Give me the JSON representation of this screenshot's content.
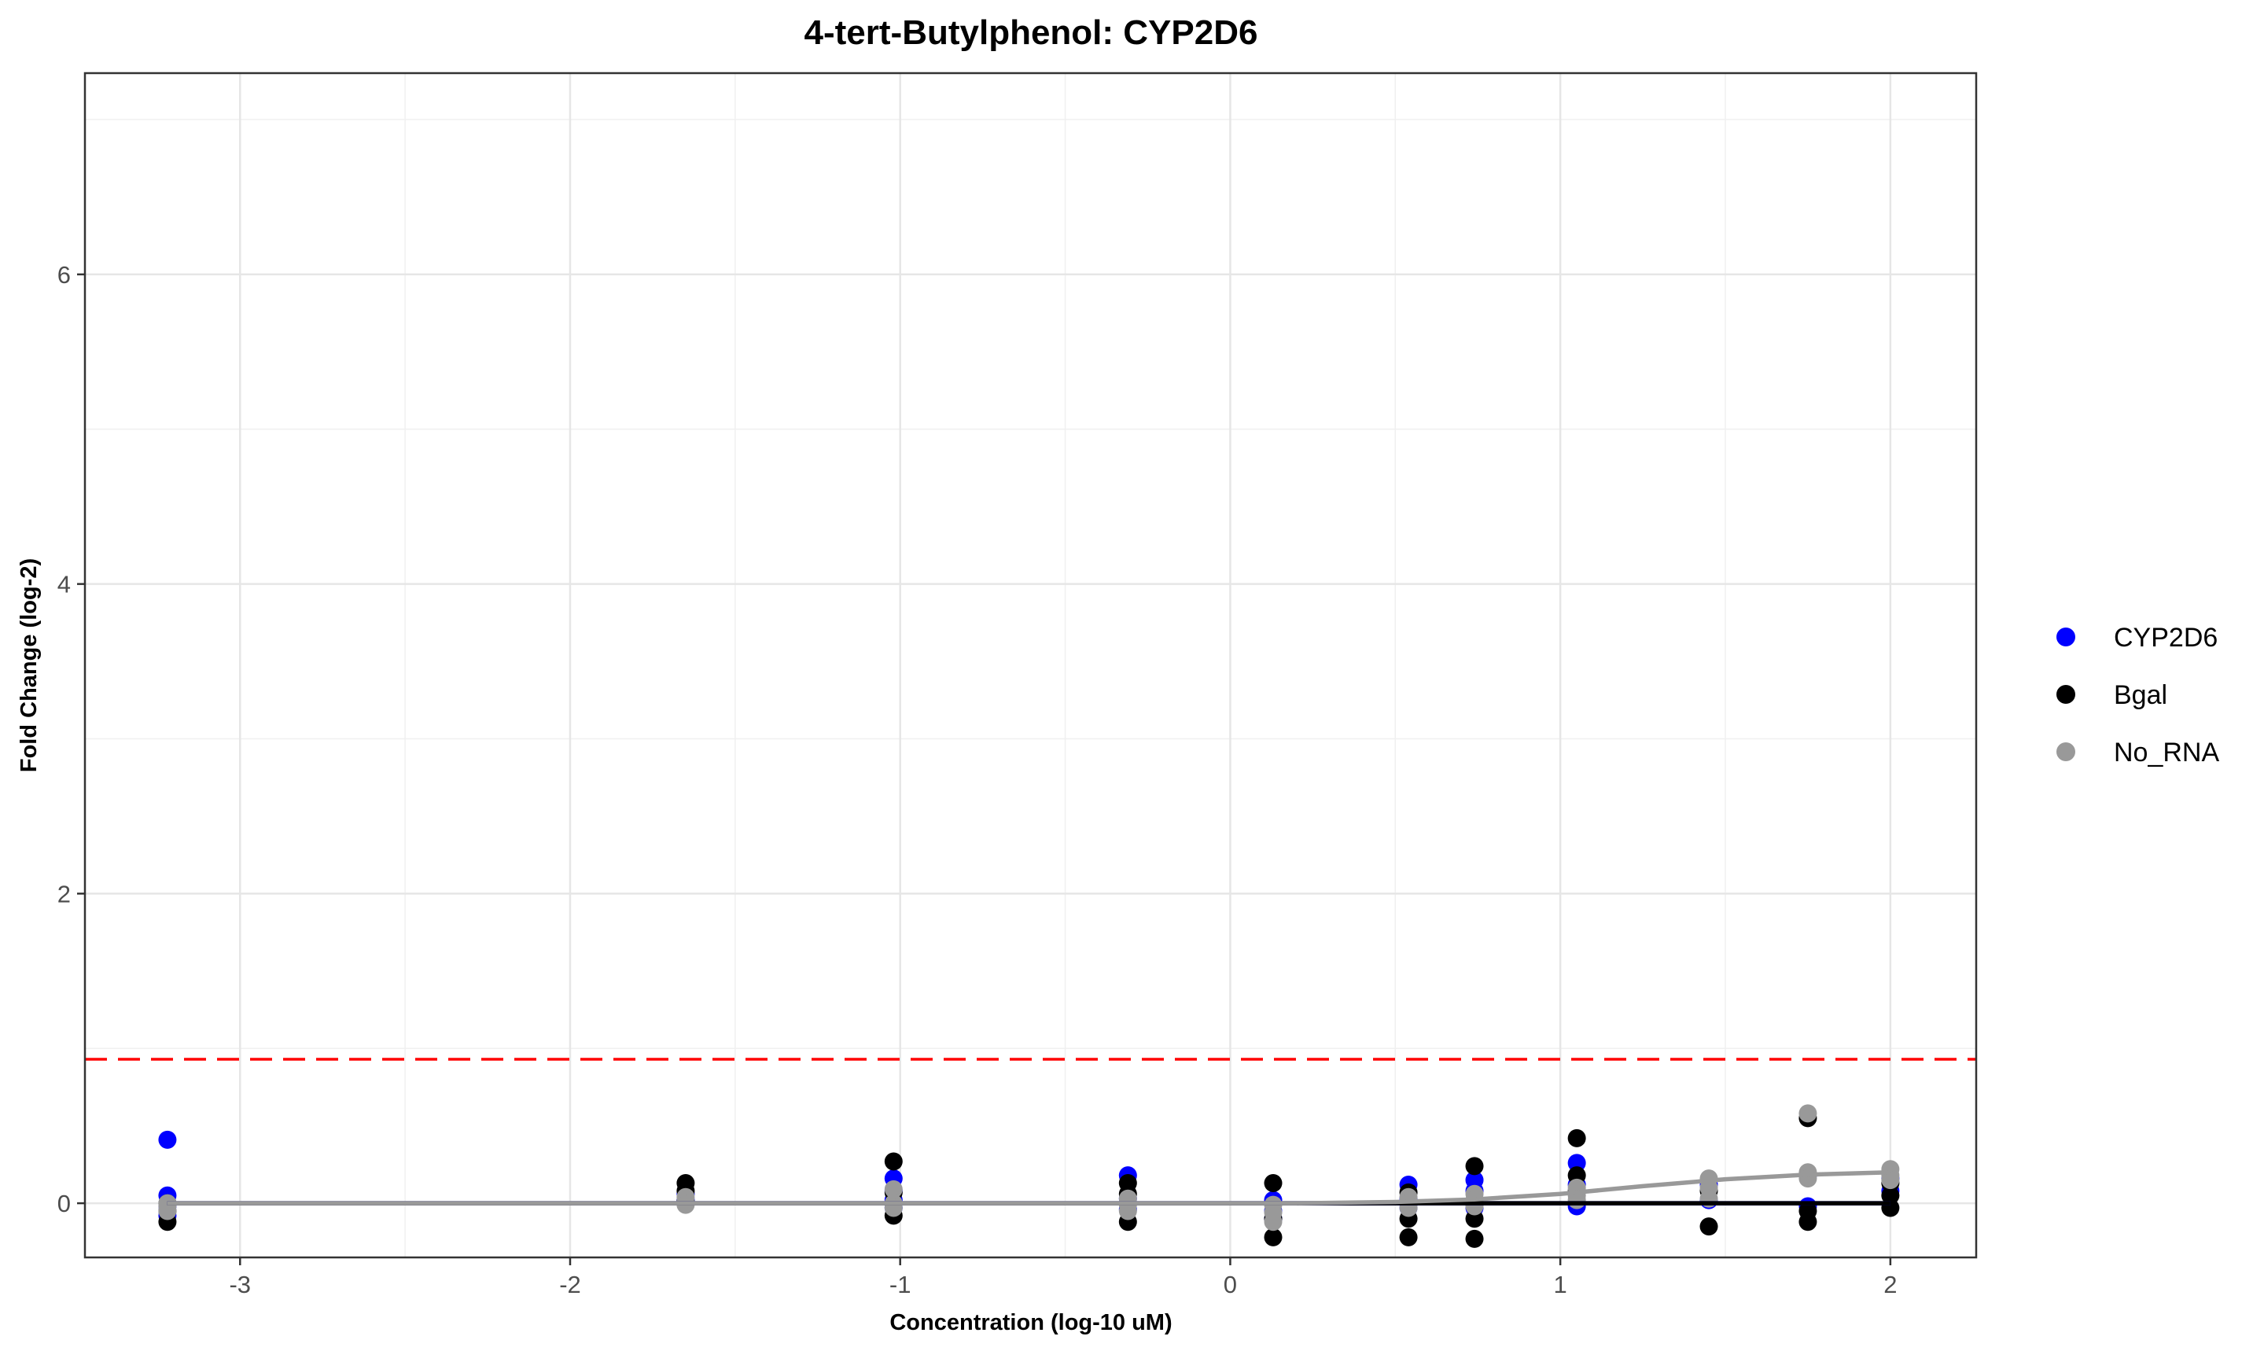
{
  "chart_data": {
    "type": "scatter",
    "title": "4-tert-Butylphenol: CYP2D6",
    "xlabel": "Concentration (log-10 uM)",
    "ylabel": "Fold Change (log-2)",
    "xlim": [
      -3.47,
      2.26
    ],
    "ylim": [
      -0.35,
      7.3
    ],
    "x_ticks": [
      -3,
      -2,
      -1,
      0,
      1,
      2
    ],
    "x_tick_labels": [
      "-3",
      "-2",
      "-1",
      "0",
      "1",
      "2"
    ],
    "y_ticks": [
      0,
      2,
      4,
      6
    ],
    "y_tick_labels": [
      "0",
      "2",
      "4",
      "6"
    ],
    "grid": true,
    "legend_position": "right",
    "threshold": {
      "y": 0.93,
      "color": "#ff0000",
      "style": "dashed"
    },
    "series": [
      {
        "name": "CYP2D6",
        "color": "#0000ff",
        "points": [
          [
            -3.22,
            0.41
          ],
          [
            -3.22,
            0.05
          ],
          [
            -3.22,
            -0.02
          ],
          [
            -3.22,
            -0.08
          ],
          [
            -1.65,
            0.02
          ],
          [
            -1.65,
            0.06
          ],
          [
            -1.02,
            0.16
          ],
          [
            -1.02,
            0.08
          ],
          [
            -1.02,
            0.02
          ],
          [
            -1.02,
            -0.03
          ],
          [
            -0.31,
            0.18
          ],
          [
            -0.31,
            0.03
          ],
          [
            -0.31,
            -0.04
          ],
          [
            0.13,
            0.02
          ],
          [
            0.13,
            -0.05
          ],
          [
            0.13,
            -0.1
          ],
          [
            0.54,
            0.12
          ],
          [
            0.54,
            0.03
          ],
          [
            0.54,
            -0.03
          ],
          [
            0.74,
            0.15
          ],
          [
            0.74,
            0.08
          ],
          [
            0.74,
            -0.03
          ],
          [
            1.05,
            0.26
          ],
          [
            1.05,
            0.12
          ],
          [
            1.05,
            -0.02
          ],
          [
            1.45,
            0.12
          ],
          [
            1.45,
            0.02
          ],
          [
            1.75,
            0.18
          ],
          [
            1.75,
            -0.02
          ],
          [
            2.0,
            0.16
          ],
          [
            2.0,
            0.08
          ]
        ],
        "fit_line": [
          [
            -3.22,
            0.0
          ],
          [
            2.0,
            0.0
          ]
        ]
      },
      {
        "name": "Bgal",
        "color": "#000000",
        "points": [
          [
            -3.22,
            -0.12
          ],
          [
            -3.22,
            -0.05
          ],
          [
            -3.22,
            0.0
          ],
          [
            -1.65,
            0.13
          ],
          [
            -1.65,
            0.08
          ],
          [
            -1.65,
            0.01
          ],
          [
            -1.02,
            0.27
          ],
          [
            -1.02,
            0.07
          ],
          [
            -1.02,
            -0.08
          ],
          [
            -0.31,
            0.13
          ],
          [
            -0.31,
            0.06
          ],
          [
            -0.31,
            -0.12
          ],
          [
            0.13,
            0.13
          ],
          [
            0.13,
            -0.1
          ],
          [
            0.13,
            -0.22
          ],
          [
            0.54,
            0.07
          ],
          [
            0.54,
            -0.1
          ],
          [
            0.54,
            -0.22
          ],
          [
            0.74,
            0.24
          ],
          [
            0.74,
            0.0
          ],
          [
            0.74,
            -0.1
          ],
          [
            0.74,
            -0.23
          ],
          [
            1.05,
            0.42
          ],
          [
            1.05,
            0.18
          ],
          [
            1.05,
            0.08
          ],
          [
            1.45,
            0.08
          ],
          [
            1.45,
            -0.15
          ],
          [
            1.75,
            0.55
          ],
          [
            1.75,
            -0.05
          ],
          [
            1.75,
            -0.12
          ],
          [
            2.0,
            0.13
          ],
          [
            2.0,
            0.05
          ],
          [
            2.0,
            -0.03
          ]
        ],
        "fit_line": [
          [
            -3.22,
            0.0
          ],
          [
            2.0,
            0.0
          ]
        ]
      },
      {
        "name": "No_RNA",
        "color": "#999999",
        "points": [
          [
            -3.22,
            -0.05
          ],
          [
            -3.22,
            0.0
          ],
          [
            -3.22,
            -0.02
          ],
          [
            -1.65,
            0.04
          ],
          [
            -1.65,
            0.0
          ],
          [
            -1.65,
            -0.01
          ],
          [
            -1.02,
            0.09
          ],
          [
            -1.02,
            0.0
          ],
          [
            -1.02,
            -0.03
          ],
          [
            -0.31,
            0.03
          ],
          [
            -0.31,
            -0.01
          ],
          [
            -0.31,
            -0.05
          ],
          [
            0.13,
            -0.01
          ],
          [
            0.13,
            -0.06
          ],
          [
            0.13,
            -0.12
          ],
          [
            0.54,
            0.04
          ],
          [
            0.54,
            0.0
          ],
          [
            0.54,
            -0.03
          ],
          [
            0.74,
            0.06
          ],
          [
            0.74,
            0.02
          ],
          [
            0.74,
            -0.02
          ],
          [
            1.05,
            0.1
          ],
          [
            1.05,
            0.05
          ],
          [
            1.05,
            0.02
          ],
          [
            1.45,
            0.16
          ],
          [
            1.45,
            0.1
          ],
          [
            1.45,
            0.03
          ],
          [
            1.75,
            0.58
          ],
          [
            1.75,
            0.2
          ],
          [
            1.75,
            0.16
          ],
          [
            2.0,
            0.22
          ],
          [
            2.0,
            0.18
          ],
          [
            2.0,
            0.15
          ]
        ],
        "fit_line": [
          [
            -3.22,
            0.0
          ],
          [
            0.2,
            0.0
          ],
          [
            0.5,
            0.008
          ],
          [
            0.74,
            0.025
          ],
          [
            1.0,
            0.06
          ],
          [
            1.25,
            0.11
          ],
          [
            1.5,
            0.155
          ],
          [
            1.75,
            0.185
          ],
          [
            2.0,
            0.2
          ]
        ]
      }
    ]
  }
}
